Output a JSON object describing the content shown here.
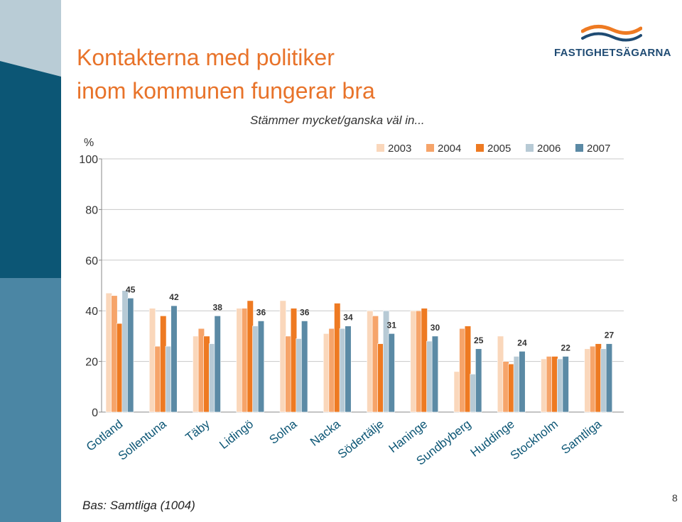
{
  "slide": {
    "title_line1": "Kontakterna med politiker",
    "title_line2": "inom kommunen fungerar bra",
    "subtitle": "Stämmer mycket/ganska väl in...",
    "unit_label": "%",
    "base_note": "Bas: Samtliga (1004)",
    "page_number": "8",
    "logo_text": "FASTIGHETSÄGARNA",
    "logo_icon": "wave-logo-icon"
  },
  "colors": {
    "title": "#e8732a",
    "band_light": "#b9ccd6",
    "band_dark": "#0c5675",
    "band_mid": "#4b86a4",
    "s2003": "#fad7bb",
    "s2004": "#f6a46a",
    "s2005": "#ee7a22",
    "s2006": "#b7cad5",
    "s2007": "#5b8aa5",
    "logo": "#1f4b73",
    "logo_accent": "#ee7a22"
  },
  "chart_data": {
    "type": "bar",
    "title": "Stämmer mycket/ganska väl in...",
    "ylabel": "%",
    "xlabel": "",
    "ylim": [
      0,
      100
    ],
    "yticks": [
      0,
      20,
      40,
      60,
      80,
      100
    ],
    "grid": true,
    "legend_position": "top-right",
    "categories": [
      "Gotland",
      "Sollentuna",
      "Täby",
      "Lidingö",
      "Solna",
      "Nacka",
      "Södertälje",
      "Haninge",
      "Sundbyberg",
      "Huddinge",
      "Stockholm",
      "Samtliga"
    ],
    "series": [
      {
        "name": "2003",
        "values": [
          47,
          41,
          30,
          41,
          44,
          31,
          40,
          40,
          16,
          30,
          21,
          25
        ]
      },
      {
        "name": "2004",
        "values": [
          46,
          26,
          33,
          41,
          30,
          33,
          38,
          40,
          33,
          20,
          22,
          26
        ]
      },
      {
        "name": "2005",
        "values": [
          35,
          38,
          30,
          44,
          41,
          43,
          27,
          41,
          34,
          19,
          22,
          27
        ]
      },
      {
        "name": "2006",
        "values": [
          48,
          26,
          27,
          34,
          29,
          33,
          40,
          28,
          15,
          22,
          21,
          25
        ]
      },
      {
        "name": "2007",
        "values": [
          45,
          42,
          38,
          36,
          36,
          34,
          31,
          30,
          25,
          24,
          22,
          27
        ]
      }
    ],
    "data_labels": {
      "series": "2007",
      "values": [
        "45",
        "42",
        "38",
        "36",
        "36",
        "34",
        "31",
        "30",
        "25",
        "24",
        "22",
        "27"
      ]
    }
  }
}
